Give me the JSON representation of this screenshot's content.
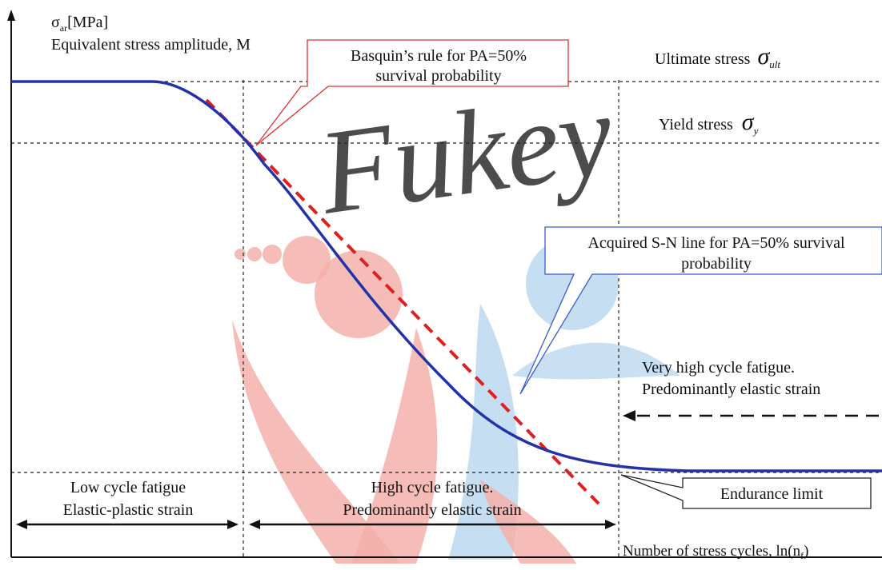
{
  "chart_data": {
    "type": "line",
    "title": "",
    "ylabel_symbol": "σ",
    "ylabel_symbol_sub": "ar",
    "ylabel_unit": "[MPa]",
    "ylabel_text": "Equivalent stress amplitude, M",
    "xlabel_text": "Number of stress cycles, ln(n",
    "xlabel_sub": "f",
    "xlabel_close": ")",
    "reference_lines": {
      "ultimate_label": "Ultimate stress",
      "ultimate_symbol": "σ",
      "ultimate_sub": "ult",
      "yield_label": "Yield stress",
      "yield_symbol": "σ",
      "yield_sub": "y"
    },
    "callouts": {
      "basquin_line1": "Basquin’s rule for PA=50%",
      "basquin_line2": "survival probability",
      "sn_line1": "Acquired S-N line for PA=50% survival",
      "sn_line2": "probability",
      "endurance": "Endurance limit"
    },
    "regions": {
      "low_line1": "Low cycle fatigue",
      "low_line2": "Elastic-plastic strain",
      "high_line1": "High cycle fatigue.",
      "high_line2": "Predominantly elastic strain",
      "very_high_line1": "Very high cycle fatigue.",
      "very_high_line2": "Predominantly elastic strain"
    },
    "series": [
      {
        "style": "solid",
        "color": "#2233aa"
      },
      {
        "style": "dashed",
        "color": "#e02020"
      }
    ],
    "watermark_text": "Fukey",
    "colors": {
      "axis": "#111111",
      "guide": "#222222",
      "sn_curve": "#2233aa",
      "basquin": "#e02020",
      "basquin_box": "#e03030",
      "sn_box": "#3a5ad0",
      "watermark_red": "#f4b0aa",
      "watermark_blue": "#bcd8ef"
    }
  }
}
